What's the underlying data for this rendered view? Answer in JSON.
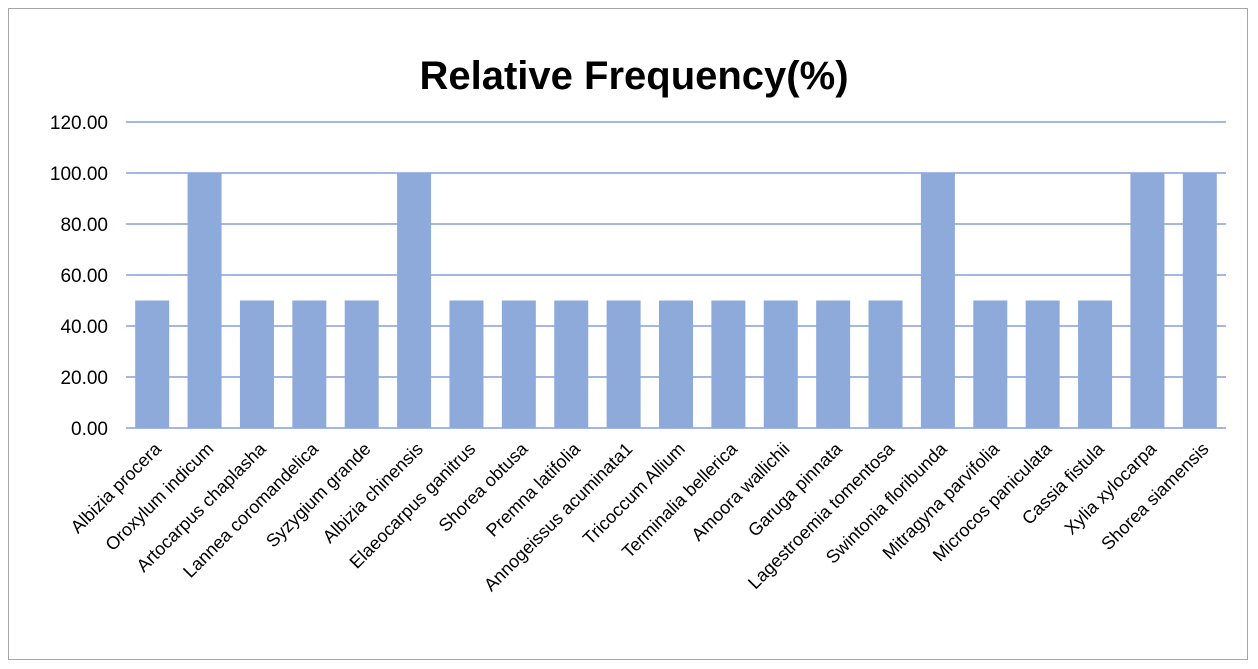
{
  "chart_data": {
    "type": "bar",
    "title": "Relative Frequency(%)",
    "xlabel": "",
    "ylabel": "",
    "ylim": [
      0,
      120
    ],
    "yticks": [
      "0.00",
      "20.00",
      "40.00",
      "60.00",
      "80.00",
      "100.00",
      "120.00"
    ],
    "grid": true,
    "legend": "none",
    "categories": [
      "Albizia procera",
      "Oroxylum indicum",
      "Artocarpus chaplasha",
      "Lannea coromandelica",
      "Syzygium grande",
      "Albizia chinensis",
      "Elaeocarpus ganitrus",
      "Shorea obtusa",
      "Premna latifolia",
      "Annogeissus acuminata1",
      "Tricoccum Allium",
      "Terminalia bellerica",
      "Amoora wallichii",
      "Garuga pinnata",
      "Lagestroemia tomentosa",
      "Swintonia floribunda",
      "Mitragyna parvifolia",
      "Microcos paniculata",
      "Cassia fistula",
      "Xylia xylocarpa",
      "Shorea siamensis"
    ],
    "values": [
      50,
      100,
      50,
      50,
      50,
      100,
      50,
      50,
      50,
      50,
      50,
      50,
      50,
      50,
      50,
      100,
      50,
      50,
      50,
      100,
      100
    ],
    "colors": {
      "bar": "#8eaadb",
      "grid": "#4472c4"
    }
  }
}
